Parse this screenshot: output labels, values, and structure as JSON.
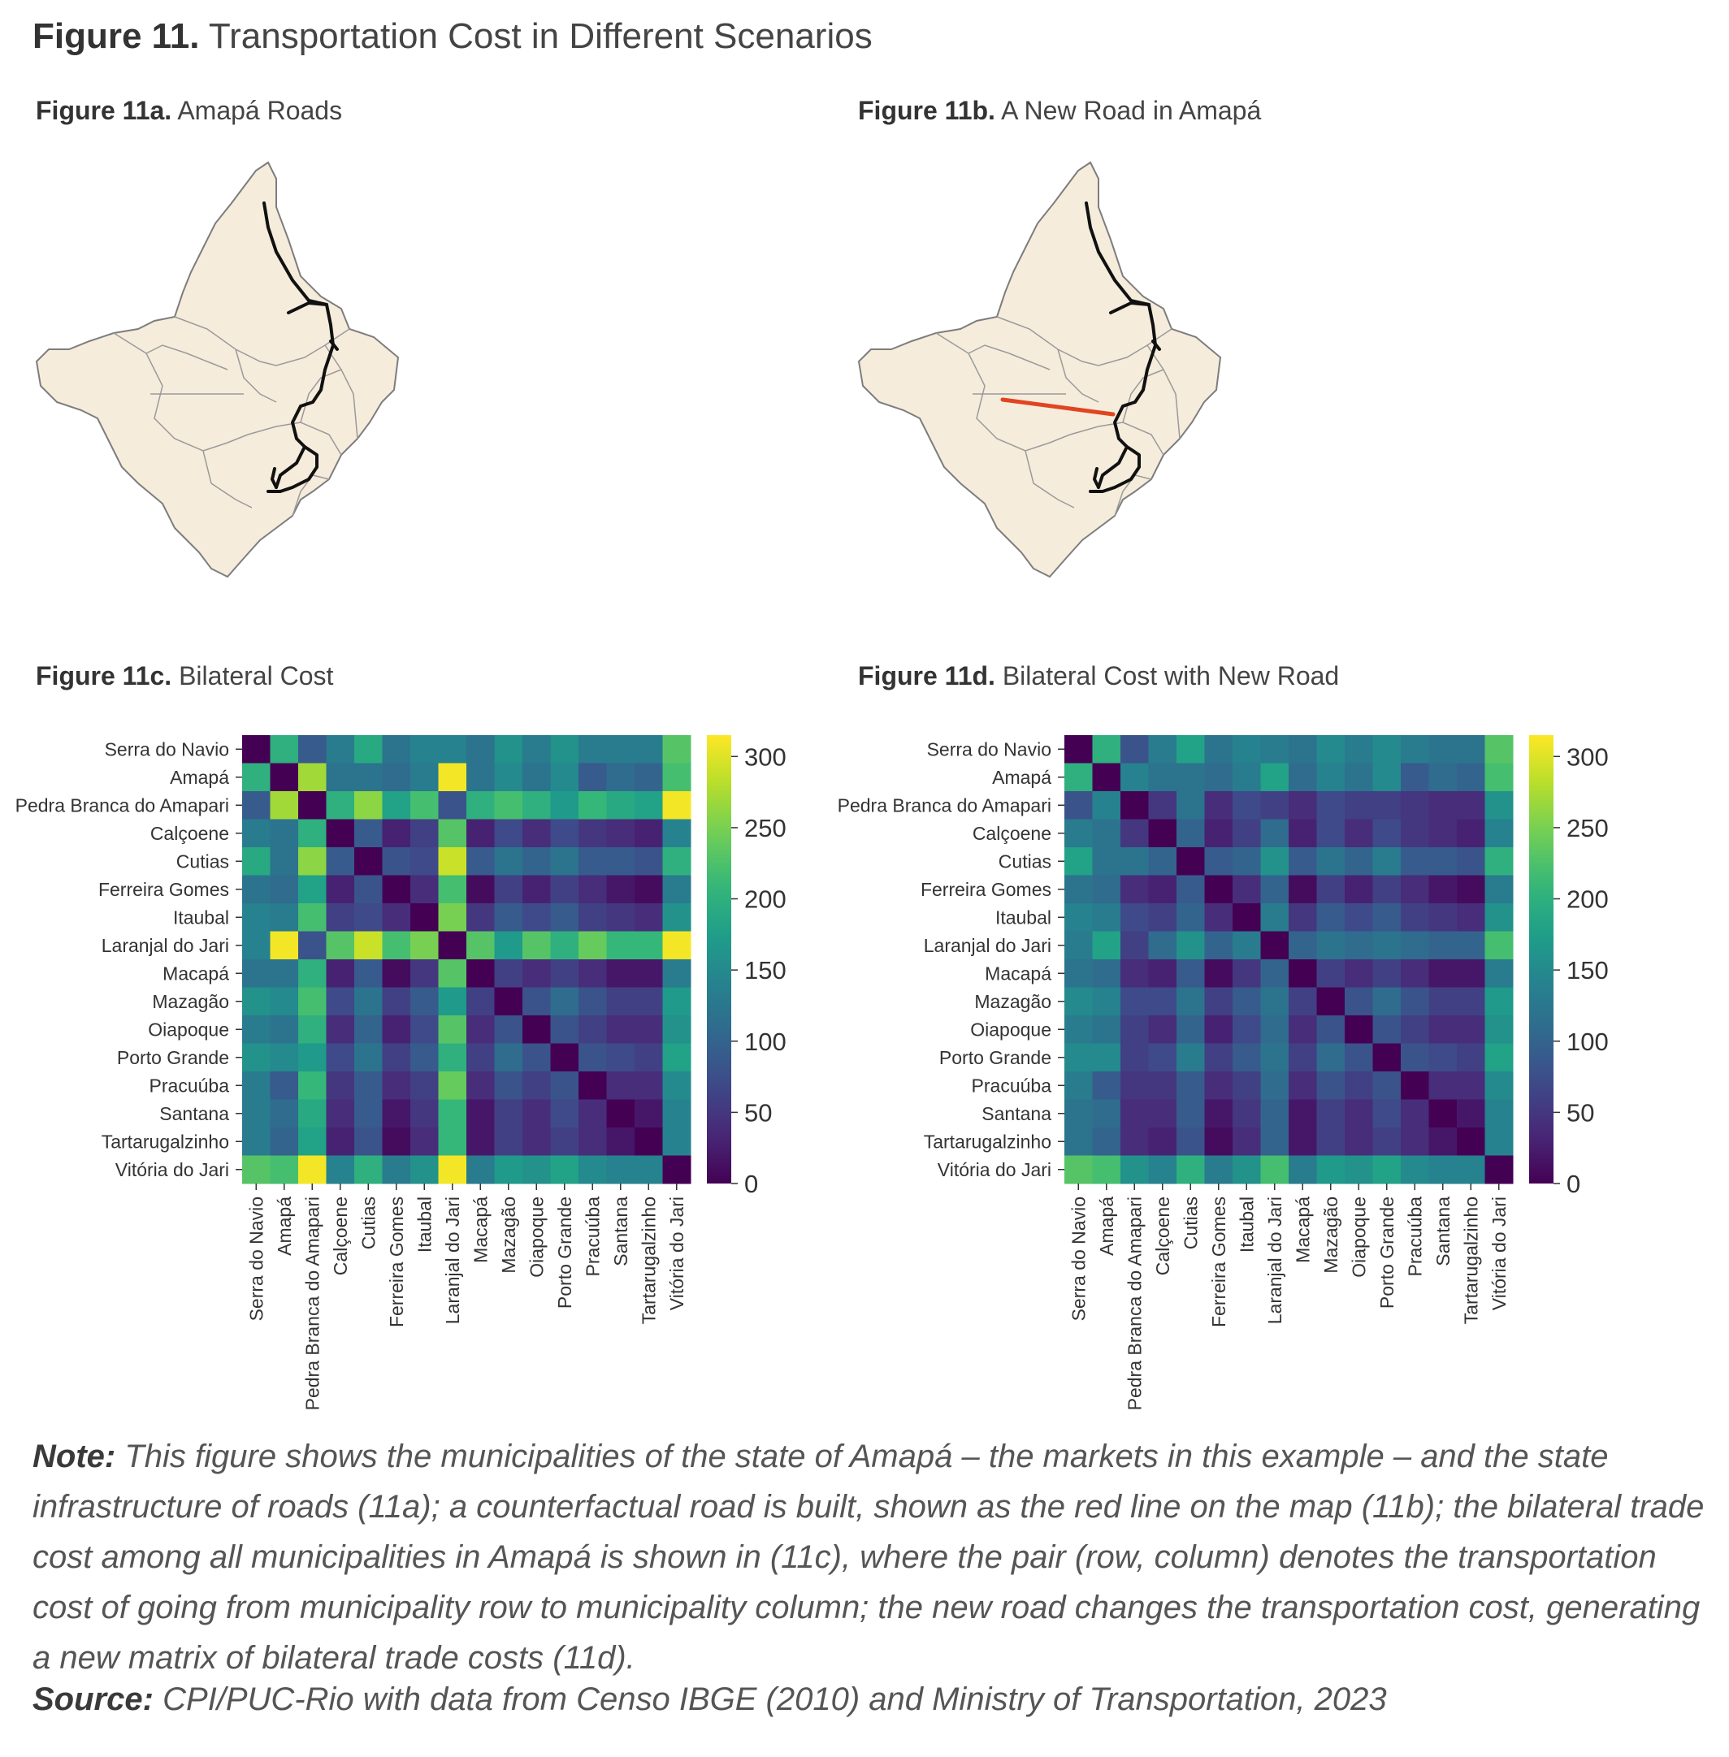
{
  "figure": {
    "label": "Figure 11.",
    "title": "Transportation Cost in Different Scenarios"
  },
  "panels": {
    "a": {
      "label": "Figure 11a.",
      "title": "Amapá Roads"
    },
    "b": {
      "label": "Figure 11b.",
      "title": "A New Road in Amapá"
    },
    "c": {
      "label": "Figure 11c.",
      "title": "Bilateral Cost"
    },
    "d": {
      "label": "Figure 11d.",
      "title": "Bilateral Cost with New Road"
    }
  },
  "colors": {
    "map_fill": "#f6ecdc",
    "map_border": "#8a8a8a",
    "road": "#111111",
    "new_road": "#e0451f",
    "colormap": "viridis"
  },
  "note": {
    "label": "Note:",
    "text": "This figure shows the municipalities of the state of Amapá – the markets in this example – and the state infrastructure of roads (11a); a counterfactual road is built, shown as the red line on the map (11b); the bilateral trade cost among all municipalities in Amapá is shown in (11c), where the pair (row, column) denotes the transportation cost of going from municipality row to municipality column; the new road changes the transportation cost, generating a new matrix of bilateral trade costs (11d)."
  },
  "source": {
    "label": "Source:",
    "text": "CPI/PUC-Rio with data from Censo IBGE (2010) and Ministry of Transportation, 2023"
  },
  "chart_data": [
    {
      "type": "heatmap",
      "title": "Bilateral Cost",
      "labels": [
        "Serra do Navio",
        "Amapá",
        "Pedra Branca do Amapari",
        "Calçoene",
        "Cutias",
        "Ferreira Gomes",
        "Itaubal",
        "Laranjal do Jari",
        "Macapá",
        "Mazagão",
        "Oiapoque",
        "Porto Grande",
        "Pracuúba",
        "Santana",
        "Tartarugalzinho",
        "Vitória do Jari"
      ],
      "colorbar": {
        "ticks": [
          0,
          50,
          100,
          150,
          200,
          250,
          300
        ],
        "range": [
          0,
          315
        ]
      },
      "values": [
        [
          0,
          200,
          90,
          130,
          190,
          120,
          140,
          140,
          120,
          160,
          130,
          160,
          130,
          130,
          130,
          230
        ],
        [
          200,
          0,
          270,
          120,
          120,
          110,
          130,
          310,
          120,
          150,
          120,
          150,
          90,
          110,
          100,
          220
        ],
        [
          90,
          270,
          0,
          200,
          260,
          180,
          220,
          80,
          200,
          220,
          200,
          170,
          210,
          190,
          180,
          310
        ],
        [
          130,
          120,
          200,
          0,
          90,
          30,
          60,
          230,
          30,
          70,
          40,
          70,
          50,
          40,
          30,
          140
        ],
        [
          190,
          120,
          260,
          90,
          0,
          80,
          70,
          290,
          90,
          120,
          100,
          120,
          90,
          90,
          80,
          200
        ],
        [
          120,
          110,
          180,
          30,
          80,
          0,
          40,
          220,
          10,
          60,
          30,
          60,
          40,
          20,
          10,
          130
        ],
        [
          140,
          130,
          220,
          60,
          70,
          40,
          0,
          250,
          50,
          90,
          70,
          90,
          60,
          50,
          40,
          160
        ],
        [
          140,
          310,
          80,
          230,
          290,
          220,
          250,
          0,
          230,
          170,
          230,
          200,
          240,
          210,
          210,
          310
        ],
        [
          120,
          120,
          200,
          30,
          90,
          10,
          50,
          230,
          0,
          60,
          40,
          60,
          40,
          20,
          20,
          130
        ],
        [
          160,
          150,
          220,
          70,
          120,
          60,
          90,
          170,
          60,
          0,
          80,
          110,
          80,
          60,
          60,
          170
        ],
        [
          130,
          120,
          200,
          40,
          100,
          30,
          70,
          230,
          40,
          80,
          0,
          80,
          60,
          40,
          40,
          160
        ],
        [
          160,
          150,
          170,
          70,
          120,
          60,
          90,
          200,
          60,
          110,
          80,
          0,
          80,
          70,
          60,
          180
        ],
        [
          130,
          90,
          210,
          50,
          90,
          40,
          60,
          240,
          40,
          80,
          60,
          80,
          0,
          40,
          40,
          150
        ],
        [
          130,
          110,
          190,
          40,
          90,
          20,
          50,
          210,
          20,
          60,
          40,
          70,
          40,
          0,
          20,
          140
        ],
        [
          130,
          100,
          180,
          30,
          80,
          10,
          40,
          210,
          20,
          60,
          40,
          60,
          40,
          20,
          0,
          140
        ],
        [
          230,
          220,
          310,
          140,
          200,
          130,
          160,
          310,
          130,
          170,
          160,
          180,
          150,
          140,
          140,
          0
        ]
      ]
    },
    {
      "type": "heatmap",
      "title": "Bilateral Cost with New Road",
      "labels": [
        "Serra do Navio",
        "Amapá",
        "Pedra Branca do Amapari",
        "Calçoene",
        "Cutias",
        "Ferreira Gomes",
        "Itaubal",
        "Laranjal do Jari",
        "Macapá",
        "Mazagão",
        "Oiapoque",
        "Porto Grande",
        "Pracuúba",
        "Santana",
        "Tartarugalzinho",
        "Vitória do Jari"
      ],
      "colorbar": {
        "ticks": [
          0,
          50,
          100,
          150,
          200,
          250,
          300
        ],
        "range": [
          0,
          315
        ]
      },
      "values": [
        [
          0,
          200,
          80,
          130,
          180,
          120,
          140,
          130,
          120,
          150,
          130,
          150,
          130,
          120,
          120,
          230
        ],
        [
          200,
          0,
          140,
          120,
          120,
          110,
          130,
          180,
          110,
          140,
          120,
          150,
          90,
          110,
          100,
          220
        ],
        [
          80,
          140,
          0,
          50,
          120,
          40,
          70,
          60,
          40,
          70,
          60,
          60,
          50,
          40,
          40,
          160
        ],
        [
          130,
          120,
          50,
          0,
          100,
          30,
          60,
          110,
          30,
          70,
          40,
          70,
          50,
          40,
          30,
          140
        ],
        [
          180,
          120,
          120,
          100,
          0,
          90,
          100,
          160,
          90,
          120,
          100,
          130,
          90,
          90,
          80,
          200
        ],
        [
          120,
          110,
          40,
          30,
          90,
          0,
          40,
          100,
          10,
          60,
          30,
          60,
          40,
          20,
          10,
          130
        ],
        [
          140,
          130,
          70,
          60,
          100,
          40,
          0,
          130,
          50,
          90,
          70,
          90,
          60,
          50,
          40,
          160
        ],
        [
          130,
          180,
          60,
          110,
          160,
          100,
          130,
          0,
          100,
          120,
          110,
          120,
          110,
          100,
          100,
          220
        ],
        [
          120,
          110,
          40,
          30,
          90,
          10,
          50,
          100,
          0,
          60,
          40,
          60,
          40,
          20,
          20,
          130
        ],
        [
          150,
          140,
          70,
          70,
          120,
          60,
          90,
          120,
          60,
          0,
          80,
          110,
          80,
          60,
          60,
          170
        ],
        [
          130,
          120,
          60,
          40,
          100,
          30,
          70,
          110,
          40,
          80,
          0,
          80,
          60,
          40,
          40,
          160
        ],
        [
          150,
          150,
          60,
          70,
          130,
          60,
          90,
          120,
          60,
          110,
          80,
          0,
          80,
          70,
          60,
          180
        ],
        [
          130,
          90,
          50,
          50,
          90,
          40,
          60,
          110,
          40,
          80,
          60,
          80,
          0,
          40,
          40,
          150
        ],
        [
          120,
          110,
          40,
          40,
          90,
          20,
          50,
          100,
          20,
          60,
          40,
          70,
          40,
          0,
          20,
          140
        ],
        [
          120,
          100,
          40,
          30,
          80,
          10,
          40,
          100,
          20,
          60,
          40,
          60,
          40,
          20,
          0,
          140
        ],
        [
          230,
          220,
          160,
          140,
          200,
          130,
          160,
          220,
          130,
          170,
          160,
          180,
          150,
          140,
          140,
          0
        ]
      ]
    }
  ]
}
